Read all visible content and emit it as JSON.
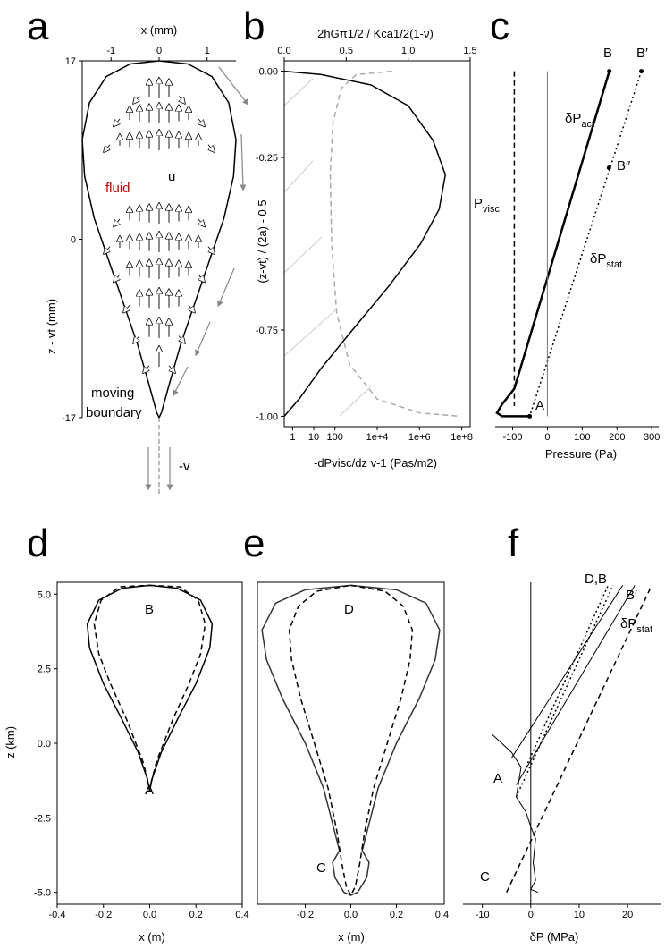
{
  "chart_data": [
    {
      "type": "line",
      "label": "a",
      "xlabel": "x (mm)",
      "ylabel": "z - vt (mm)",
      "xlim": [
        -1.6,
        1.6
      ],
      "xticks": [
        -1,
        0,
        1
      ],
      "ylim": [
        -17,
        17
      ],
      "yticks": [
        17,
        0,
        -17
      ],
      "series": [
        {
          "color": "#000000",
          "style": "solid",
          "x": [
            0,
            0.6,
            1.1,
            1.45,
            1.6,
            1.55,
            1.35,
            1.05,
            0.75,
            0.45,
            0.2,
            0.05,
            0,
            -0.05,
            -0.2,
            -0.45,
            -0.75,
            -1.05,
            -1.35,
            -1.55,
            -1.6,
            -1.45,
            -1.1,
            -0.6,
            0
          ],
          "values": [
            17,
            16.7,
            15.5,
            13,
            9.5,
            6,
            2,
            -2,
            -6,
            -10,
            -14,
            -16.5,
            -17,
            -16.5,
            -14,
            -10,
            -6,
            -2,
            2,
            6,
            9.5,
            13,
            15.5,
            16.7,
            17
          ]
        }
      ],
      "annotations": [
        {
          "text": "fluid",
          "color": "#c00000"
        },
        {
          "text": "u"
        },
        {
          "text": "moving"
        },
        {
          "text": "boundary"
        },
        {
          "text": "-v"
        }
      ]
    },
    {
      "type": "line",
      "label": "b",
      "x2label": "2hGπ1/2 / Kca1/2(1-ν)",
      "xlabel": "-dPvisc/dz v-1 (Pas/m2)",
      "ylabel": "(z-vt) / (2a)  - 0.5",
      "xscale": "log",
      "xlim": [
        0.4,
        250000000
      ],
      "xticks": [
        1,
        10,
        100,
        {
          "value": 10000,
          "label": "1e+4"
        },
        {
          "value": 1000000,
          "label": "1e+6"
        },
        {
          "value": 100000000,
          "label": "1e+8"
        }
      ],
      "x2lim": [
        0,
        1.5
      ],
      "x2ticks": [
        {
          "value": 0,
          "label": "0.0"
        },
        0.5,
        {
          "value": 1,
          "label": "1.0"
        },
        1.5
      ],
      "ylim": [
        -1.03,
        0.03
      ],
      "yticks": [
        {
          "value": 0,
          "label": "0.00"
        },
        -0.25,
        -0.75,
        {
          "value": -1,
          "label": "-1.00"
        }
      ],
      "series": [
        {
          "color": "#000000",
          "style": "solid",
          "axis": "x2",
          "x": [
            0,
            0.3,
            0.7,
            1.0,
            1.2,
            1.3,
            1.25,
            1.1,
            0.85,
            0.55,
            0.3,
            0.12,
            0
          ],
          "values": [
            0,
            -0.01,
            -0.04,
            -0.1,
            -0.2,
            -0.3,
            -0.4,
            -0.5,
            -0.62,
            -0.75,
            -0.86,
            -0.95,
            -1.0
          ]
        },
        {
          "color": "#aaaaaa",
          "style": "dashed",
          "x": [
            50000,
            1000,
            200,
            80,
            60,
            70,
            120,
            500,
            10000,
            1000000,
            80000000
          ],
          "values": [
            0,
            -0.01,
            -0.05,
            -0.15,
            -0.3,
            -0.5,
            -0.7,
            -0.85,
            -0.95,
            -0.99,
            -1.0
          ]
        }
      ]
    },
    {
      "type": "line",
      "label": "c",
      "xlabel": "Pressure (Pa)",
      "xlim": [
        -150,
        320
      ],
      "xticks": [
        -100,
        0,
        100,
        200,
        300
      ],
      "ylim": [
        -1.03,
        0.03
      ],
      "series": [
        {
          "color": "#000000",
          "style": "solid",
          "width": 2.5,
          "x": [
            178,
            -95,
            -130,
            -145,
            -130,
            -50
          ],
          "values": [
            0,
            -0.92,
            -0.965,
            -0.99,
            -1.0,
            -1.0
          ]
        },
        {
          "color": "#000000",
          "style": "dotted",
          "x": [
            270,
            -51
          ],
          "values": [
            0,
            -1.0
          ]
        },
        {
          "color": "#000000",
          "style": "dashed",
          "x": [
            -95,
            -95
          ],
          "values": [
            0,
            -0.97
          ]
        },
        {
          "color": "#777777",
          "style": "solid",
          "width": 1,
          "x": [
            0,
            0
          ],
          "values": [
            0,
            -1.0
          ]
        },
        {
          "color": "#000000",
          "style": "points",
          "x": [
            178,
            270,
            177,
            -51
          ],
          "values": [
            0,
            0,
            -0.28,
            -1.0
          ]
        }
      ],
      "annotations": [
        {
          "text": "B"
        },
        {
          "text": "B′"
        },
        {
          "text": "B″"
        },
        {
          "text": "A"
        },
        {
          "text": "δP",
          "sub": "act"
        },
        {
          "text": "δP",
          "sub": "stat"
        },
        {
          "text": "P",
          "sub": "visc"
        }
      ]
    },
    {
      "type": "line",
      "label": "d",
      "xlabel": "x (m)",
      "ylabel": "z (km)",
      "xlim": [
        -0.4,
        0.4
      ],
      "xticks": [
        -0.4,
        -0.2,
        {
          "value": 0,
          "label": "0.0"
        },
        0.2,
        0.4
      ],
      "ylim": [
        -5.4,
        5.4
      ],
      "yticks": [
        {
          "value": 5,
          "label": "5.0"
        },
        2.5,
        {
          "value": 0,
          "label": "0.0"
        },
        -2.5,
        {
          "value": -5,
          "label": "-5.0"
        }
      ],
      "series": [
        {
          "color": "#000000",
          "style": "solid",
          "x": [
            0,
            0.12,
            0.22,
            0.27,
            0.26,
            0.2,
            0.12,
            0.05,
            0.01,
            0,
            -0.01,
            -0.05,
            -0.12,
            -0.2,
            -0.26,
            -0.27,
            -0.22,
            -0.12,
            0
          ],
          "values": [
            5.3,
            5.2,
            4.8,
            4.0,
            3.2,
            2.0,
            0.8,
            -0.3,
            -1.2,
            -1.6,
            -1.2,
            -0.3,
            0.8,
            2.0,
            3.2,
            4.0,
            4.8,
            5.2,
            5.3
          ]
        },
        {
          "color": "#000000",
          "style": "dashed",
          "x": [
            0,
            0.13,
            0.21,
            0.24,
            0.22,
            0.17,
            0.1,
            0.03,
            0,
            -0.03,
            -0.1,
            -0.17,
            -0.22,
            -0.24,
            -0.21,
            -0.13,
            0
          ],
          "values": [
            5.3,
            5.25,
            4.8,
            4.0,
            3.0,
            2.0,
            0.8,
            -0.6,
            -1.5,
            -0.6,
            0.8,
            2.0,
            3.0,
            4.0,
            4.8,
            5.25,
            5.3
          ]
        }
      ],
      "annotations": [
        {
          "text": "B"
        },
        {
          "text": "A"
        }
      ]
    },
    {
      "type": "line",
      "label": "e",
      "xlabel": "x (m)",
      "xlim": [
        -0.41,
        0.41
      ],
      "xticks": [
        -0.2,
        {
          "value": 0,
          "label": "0.0"
        },
        0.2,
        0.4
      ],
      "ylim": [
        -5.4,
        5.4
      ],
      "series": [
        {
          "color": "#333333",
          "style": "solid",
          "x": [
            0,
            0.2,
            0.33,
            0.39,
            0.37,
            0.3,
            0.2,
            0.12,
            0.07,
            0.05,
            0.08,
            0.07,
            0.03,
            0,
            -0.03,
            -0.07,
            -0.08,
            -0.05,
            -0.07,
            -0.12,
            -0.2,
            -0.3,
            -0.37,
            -0.39,
            -0.33,
            -0.2,
            0
          ],
          "values": [
            5.3,
            5.15,
            4.7,
            3.8,
            2.8,
            1.5,
            0.0,
            -1.5,
            -3.0,
            -3.6,
            -4.0,
            -4.5,
            -5.0,
            -5.1,
            -5.0,
            -4.5,
            -4.0,
            -3.6,
            -3.0,
            -1.5,
            0.0,
            1.5,
            2.8,
            3.8,
            4.7,
            5.15,
            5.3
          ]
        },
        {
          "color": "#000000",
          "style": "dashed",
          "x": [
            0,
            0.15,
            0.23,
            0.27,
            0.26,
            0.22,
            0.16,
            0.1,
            0.06,
            0.04,
            0.02,
            0,
            -0.02,
            -0.04,
            -0.06,
            -0.1,
            -0.16,
            -0.22,
            -0.26,
            -0.27,
            -0.23,
            -0.15,
            0
          ],
          "values": [
            5.3,
            5.1,
            4.6,
            3.8,
            2.8,
            1.5,
            0.0,
            -1.5,
            -3.0,
            -4.0,
            -4.8,
            -5.1,
            -4.8,
            -4.0,
            -3.0,
            -1.5,
            0.0,
            1.5,
            2.8,
            3.8,
            4.6,
            5.1,
            5.3
          ]
        }
      ],
      "annotations": [
        {
          "text": "D"
        },
        {
          "text": "C"
        }
      ]
    },
    {
      "type": "line",
      "label": "f",
      "xlabel": "δP (MPa)",
      "xlim": [
        -14,
        27
      ],
      "xticks": [
        -10,
        0,
        10,
        20
      ],
      "ylim": [
        -5.4,
        5.4
      ],
      "series": [
        {
          "color": "#000000",
          "style": "dotted",
          "x": [
            -3,
            17
          ],
          "values": [
            -1.8,
            5.3
          ]
        },
        {
          "color": "#000000",
          "style": "dotted",
          "x": [
            -1,
            16
          ],
          "values": [
            -0.8,
            5.3
          ]
        },
        {
          "color": "#000000",
          "style": "solid",
          "width": 1,
          "x": [
            -4,
            19
          ],
          "values": [
            -0.5,
            5.3
          ]
        },
        {
          "color": "#000000",
          "style": "solid",
          "width": 1,
          "x": [
            -3,
            21.5
          ],
          "values": [
            -1.4,
            5.3
          ]
        },
        {
          "color": "#000000",
          "style": "dashed",
          "x": [
            -5,
            25
          ],
          "values": [
            -5,
            5.3
          ]
        },
        {
          "color": "#000000",
          "style": "solid",
          "width": 1,
          "x": [
            -8,
            -4,
            -2,
            -3,
            -1,
            0,
            1,
            0.5,
            1,
            0,
            1.5
          ],
          "values": [
            0.3,
            -0.3,
            -0.8,
            -1.8,
            -2.3,
            -2.8,
            -3.2,
            -4,
            -4.6,
            -4.9,
            -5.0
          ]
        }
      ],
      "annotations": [
        {
          "text": "D,B"
        },
        {
          "text": "B′"
        },
        {
          "text": "δP",
          "sub": "stat"
        },
        {
          "text": "A"
        },
        {
          "text": "C"
        }
      ]
    }
  ]
}
